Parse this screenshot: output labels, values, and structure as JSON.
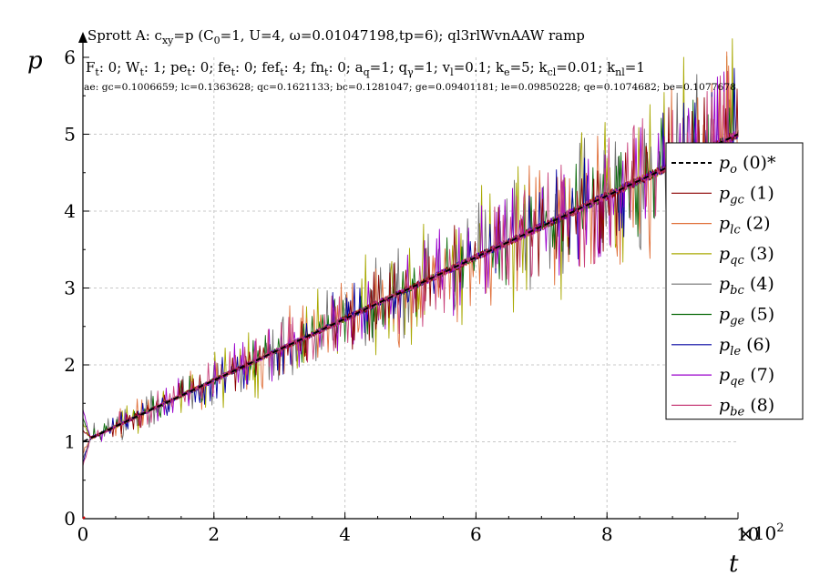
{
  "chart_data": {
    "type": "line",
    "title": "Sprott A: c_xy=p (C_0=1, U=4, ω=0.01047198,tp=6); ql3rlWvnAAW ramp",
    "title_parts": {
      "a": "Sprott A: c",
      "sub1": "xy",
      "b": "=p (C",
      "sub2": "0",
      "c": "=1, U=4, ω=0.01047198,tp=6); ql3rlWvnAAW ramp"
    },
    "annotation_line1": {
      "f": "F",
      "f_sub": "t",
      "f_val": ": 0; W",
      "w_sub": "t",
      "w_val": ": 1; pe",
      "pe_sub": "t",
      "pe_val": ": 0; fe",
      "fe_sub": "t",
      "fe_val": ": 0; fef",
      "fef_sub": "t",
      "fef_val": ": 4; fn",
      "fn_sub": "t",
      "fn_val": ": 0; a",
      "a_sub": "q",
      "a_val": "=1; q",
      "q_sub": "γ",
      "q_val": "=1; v",
      "v_sub": "l",
      "v_val": "=0.1; k",
      "ke_sub": "e",
      "ke_val": "=5; k",
      "kcl_sub": "cl",
      "kcl_val": "=0.01; k",
      "knl_sub": "nl",
      "knl_val": "=1"
    },
    "annotation_line2": "ae: gc=0.1006659; lc=0.1363628; qc=0.1621133; bc=0.1281047; ge=0.09401181; le=0.09850228; qe=0.1074682; be=0.1077678",
    "xlabel": "t",
    "ylabel": "p",
    "x_multiplier": "×10",
    "x_multiplier_exp": "2",
    "xlim": [
      0,
      10
    ],
    "ylim": [
      0,
      6
    ],
    "x_ticks": [
      0,
      2,
      4,
      6,
      8,
      10
    ],
    "x_tick_labels": [
      "0",
      "2",
      "4",
      "6",
      "8",
      "10"
    ],
    "y_ticks": [
      0,
      1,
      2,
      3,
      4,
      5,
      6
    ],
    "y_tick_labels": [
      "0",
      "1",
      "2",
      "3",
      "4",
      "5",
      "6"
    ],
    "grid": true,
    "legend_position": "right",
    "reference": {
      "x": [
        0,
        10
      ],
      "y": [
        1.0,
        5.0
      ]
    },
    "series": [
      {
        "label": "p",
        "sub": "o",
        "num": " (0)*",
        "color": "#000000",
        "dashed": true
      },
      {
        "label": "p",
        "sub": "gc",
        "num": " (1)",
        "color": "#8b0000",
        "dashed": false,
        "spike": 0.1
      },
      {
        "label": "p",
        "sub": "lc",
        "num": " (2)",
        "color": "#e0703a",
        "dashed": false,
        "spike": 0.14
      },
      {
        "label": "p",
        "sub": "qc",
        "num": " (3)",
        "color": "#a8a800",
        "dashed": false,
        "spike": 0.16
      },
      {
        "label": "p",
        "sub": "bc",
        "num": " (4)",
        "color": "#707070",
        "dashed": false,
        "spike": 0.13
      },
      {
        "label": "p",
        "sub": "ge",
        "num": " (5)",
        "color": "#0a6a0a",
        "dashed": false,
        "spike": 0.09
      },
      {
        "label": "p",
        "sub": "le",
        "num": " (6)",
        "color": "#0000a0",
        "dashed": false,
        "spike": 0.1
      },
      {
        "label": "p",
        "sub": "qe",
        "num": " (7)",
        "color": "#9a00cc",
        "dashed": false,
        "spike": 0.11
      },
      {
        "label": "p",
        "sub": "be",
        "num": " (8)",
        "color": "#c8407a",
        "dashed": false,
        "spike": 0.11
      }
    ]
  }
}
